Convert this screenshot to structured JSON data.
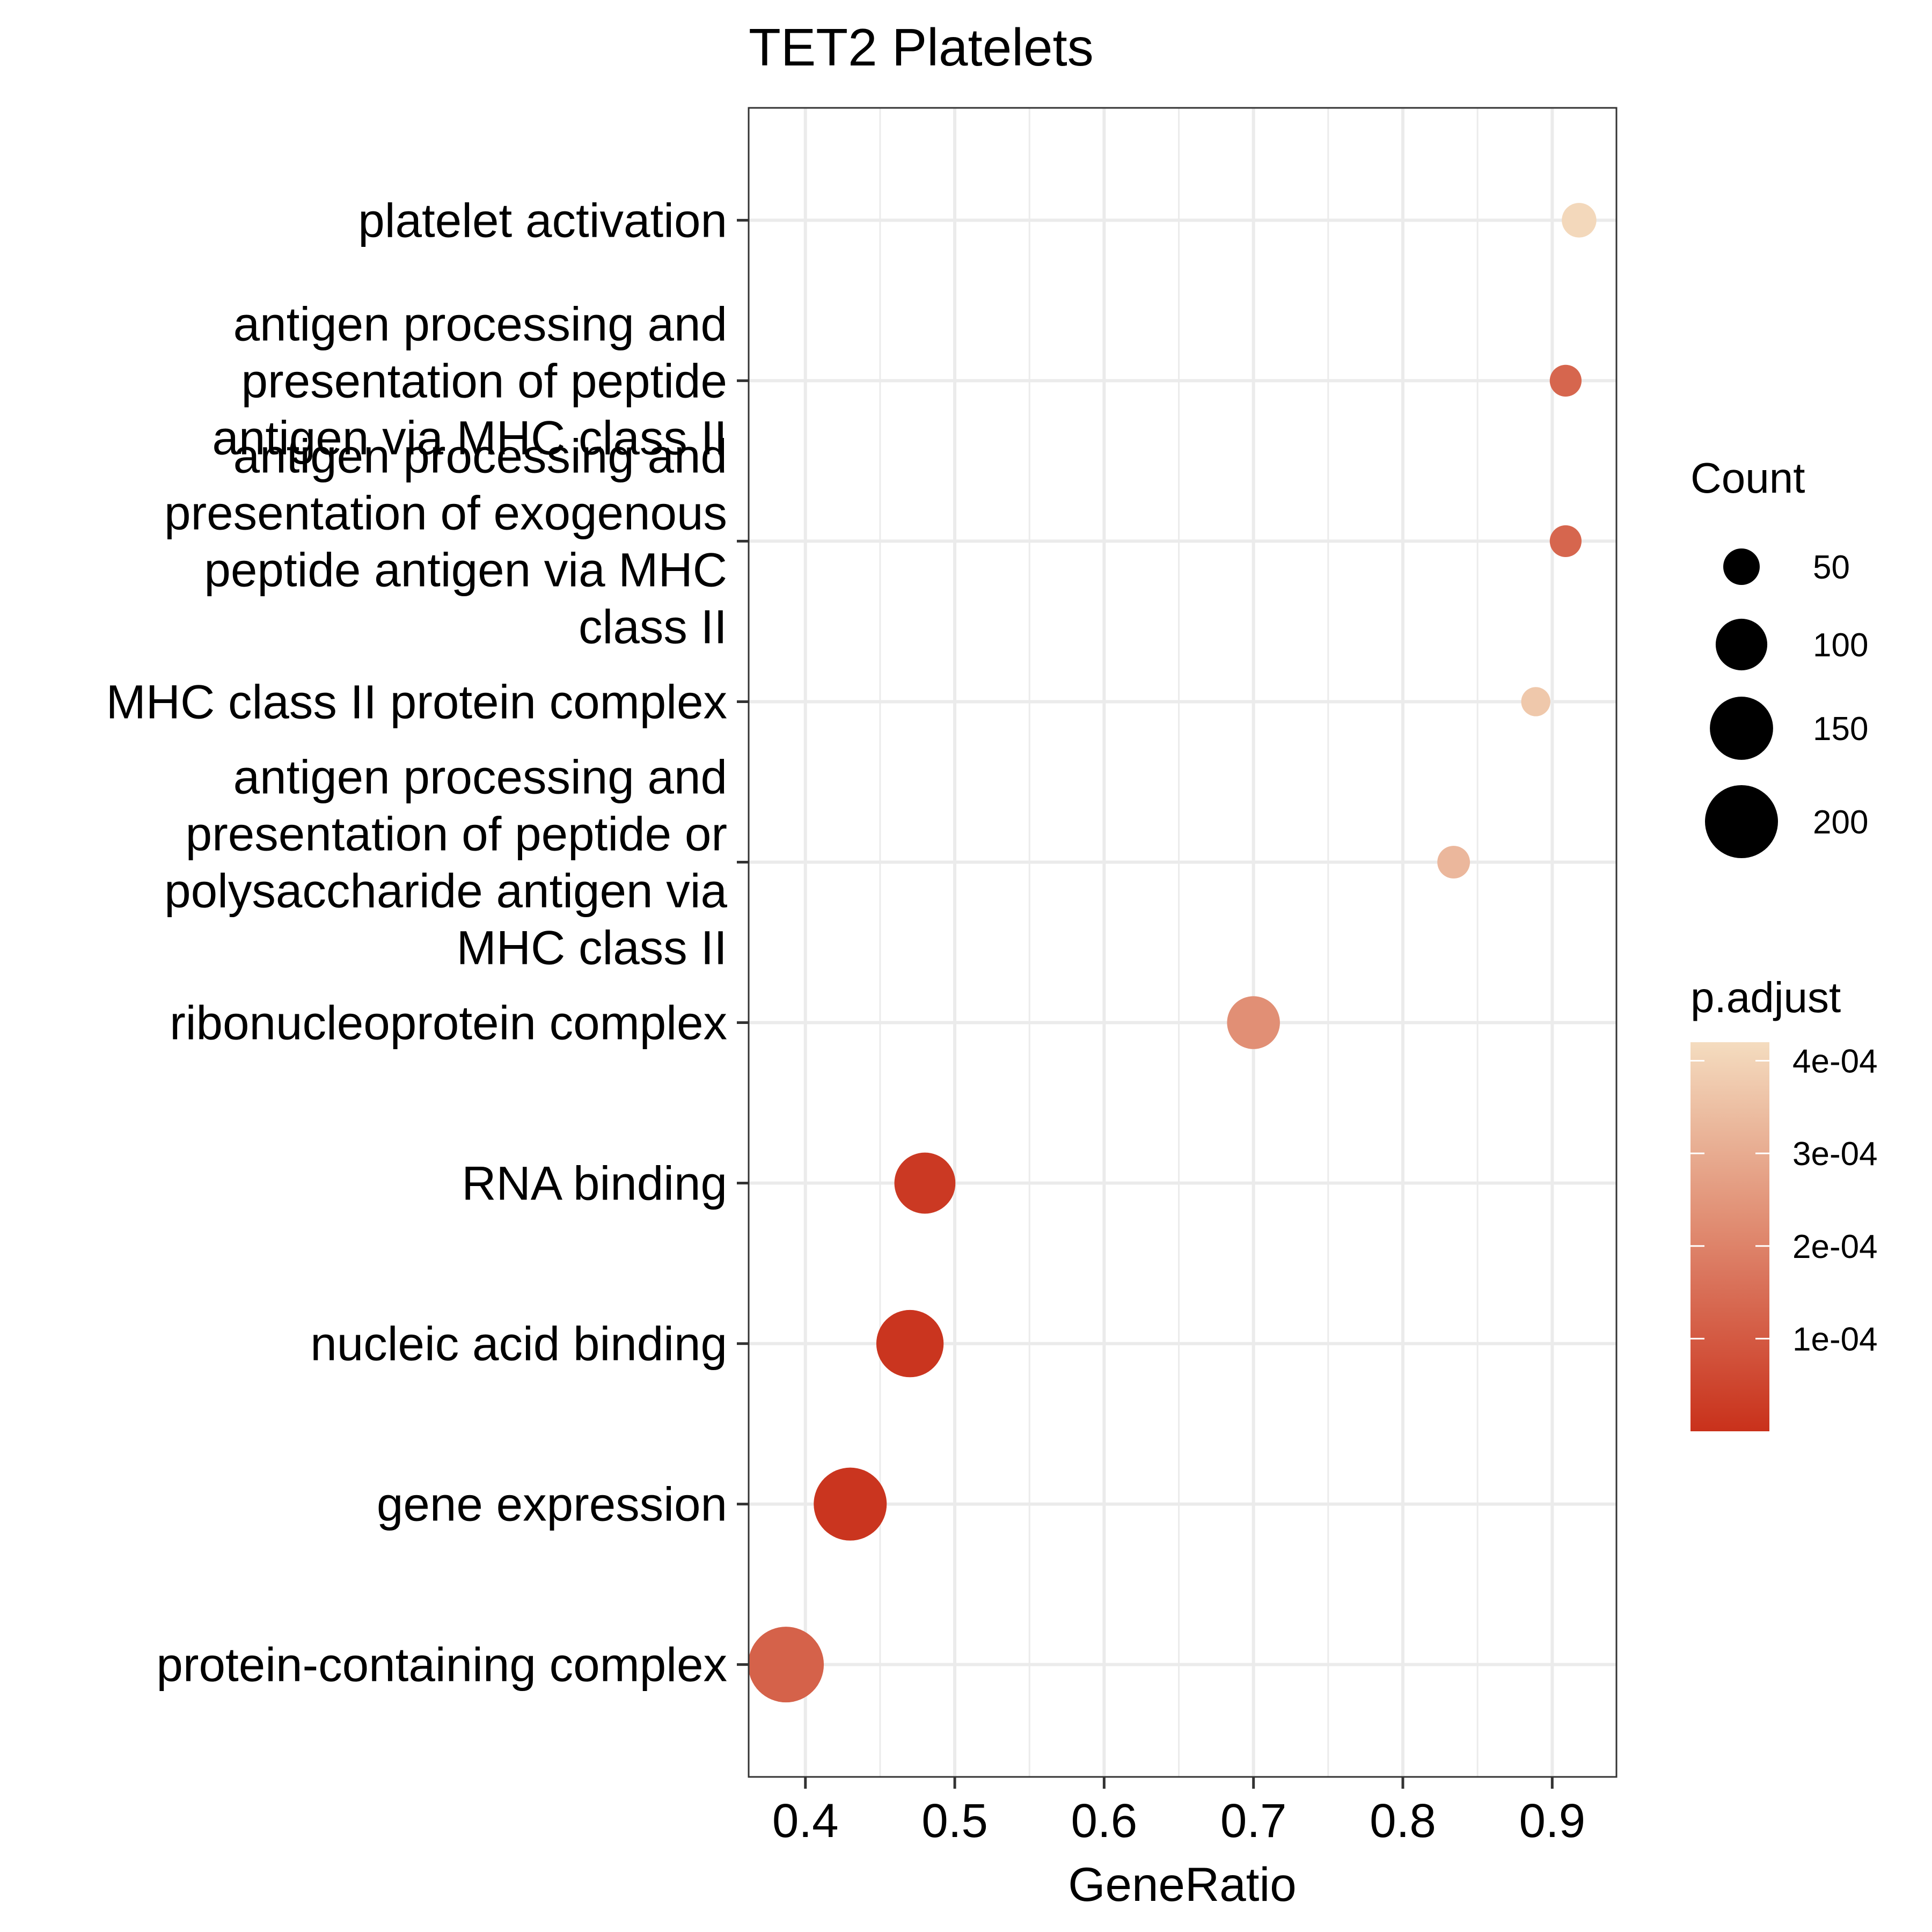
{
  "chart_data": {
    "type": "scatter",
    "title": "TET2 Platelets",
    "xlabel": "GeneRatio",
    "ylabel": "",
    "xlim": [
      0.362,
      0.943
    ],
    "x_ticks": [
      "0.4",
      "0.5",
      "0.6",
      "0.7",
      "0.8",
      "0.9"
    ],
    "x_tick_values": [
      0.4,
      0.5,
      0.6,
      0.7,
      0.8,
      0.9
    ],
    "grid": true,
    "theme": "black-and-white panel",
    "categories": [
      {
        "lines": [
          "platelet activation"
        ],
        "x": 0.918,
        "count": 45,
        "p_adjust": 0.00041
      },
      {
        "lines": [
          "antigen processing and",
          "presentation of peptide",
          "antigen via MHC class II"
        ],
        "x": 0.909,
        "count": 38,
        "p_adjust": 0.00013
      },
      {
        "lines": [
          "antigen processing and",
          "presentation of exogenous",
          "peptide antigen via MHC",
          "class II"
        ],
        "x": 0.909,
        "count": 38,
        "p_adjust": 0.00013
      },
      {
        "lines": [
          "MHC class II protein complex"
        ],
        "x": 0.889,
        "count": 32,
        "p_adjust": 0.00037
      },
      {
        "lines": [
          "antigen processing and",
          "presentation of peptide or",
          "polysaccharide antigen via",
          "MHC class II"
        ],
        "x": 0.834,
        "count": 40,
        "p_adjust": 0.00033
      },
      {
        "lines": [
          "ribonucleoprotein complex"
        ],
        "x": 0.7,
        "count": 105,
        "p_adjust": 0.00023
      },
      {
        "lines": [
          "RNA binding"
        ],
        "x": 0.48,
        "count": 140,
        "p_adjust": 2e-05
      },
      {
        "lines": [
          "nucleic acid binding"
        ],
        "x": 0.47,
        "count": 170,
        "p_adjust": 1e-05
      },
      {
        "lines": [
          "gene expression"
        ],
        "x": 0.43,
        "count": 200,
        "p_adjust": 1e-05
      },
      {
        "lines": [
          "protein-containing complex"
        ],
        "x": 0.387,
        "count": 215,
        "p_adjust": 0.00012
      }
    ],
    "size_legend": {
      "title": "Count",
      "labels": [
        "50",
        "100",
        "150",
        "200"
      ],
      "values": [
        50,
        100,
        150,
        200
      ],
      "color": "#000000"
    },
    "color_legend": {
      "title": "p.adjust",
      "labels": [
        "4e-04",
        "3e-04",
        "2e-04",
        "1e-04"
      ],
      "values": [
        0.0004,
        0.0003,
        0.0002,
        0.0001
      ],
      "range": [
        0.0,
        0.00042
      ],
      "low_color": "#C9311B",
      "high_color": "#F4DCBF"
    },
    "legend_position": "right"
  }
}
